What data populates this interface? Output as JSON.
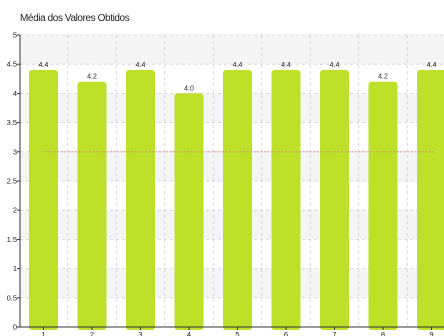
{
  "chart_data": {
    "type": "bar",
    "title": "Média dos Valores Obtidos",
    "xlabel": "",
    "ylabel": "",
    "categories": [
      "1",
      "2",
      "3",
      "4",
      "5",
      "6",
      "7",
      "8",
      "9"
    ],
    "values": [
      4.4,
      4.2,
      4.4,
      4.0,
      4.4,
      4.4,
      4.4,
      4.2,
      4.4
    ],
    "data_labels": [
      "4.4",
      "4.2",
      "4.4",
      "4.0",
      "4.4",
      "4.4",
      "4.4",
      "4.2",
      "4.4"
    ],
    "ylim": [
      0,
      5
    ],
    "y_ticks": [
      0,
      0.5,
      1,
      1.5,
      2,
      2.5,
      3,
      3.5,
      4,
      4.5,
      5
    ],
    "y_tick_labels": [
      "0",
      "0.5",
      "1",
      "1.5",
      "2",
      "2.5",
      "3",
      "3.5",
      "4",
      "4.5",
      "5"
    ],
    "reference_line": 3,
    "grid": true,
    "legend": "none",
    "colors": {
      "bar": "#bde029",
      "reference_line": "#d9897c",
      "grid": "#cfcfcf",
      "band": "#f5f5f5",
      "axis": "#333333"
    }
  }
}
